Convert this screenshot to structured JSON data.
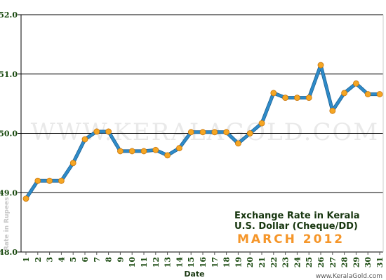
{
  "watermark": "WWW.KERALAGOLD.COM",
  "credit": "www.KeralaGold.com",
  "chart_data": {
    "type": "line",
    "title_lines": [
      "Exchange Rate in Kerala",
      "U.S. Dollar (Cheque/DD)"
    ],
    "subtitle": "MARCH 2012",
    "xlabel": "Date",
    "ylabel": "Rate in Rupees",
    "ylim": [
      48.0,
      52.0
    ],
    "yticks": [
      "48.0",
      "49.0",
      "50.0",
      "51.0",
      "52.0"
    ],
    "x": [
      1,
      2,
      3,
      4,
      5,
      6,
      7,
      8,
      9,
      10,
      11,
      12,
      13,
      14,
      15,
      16,
      17,
      18,
      19,
      20,
      21,
      22,
      23,
      24,
      25,
      26,
      27,
      28,
      29,
      30,
      31
    ],
    "series": [
      {
        "values": [
          48.9,
          49.2,
          49.2,
          49.2,
          49.5,
          49.9,
          50.03,
          50.03,
          49.7,
          49.7,
          49.7,
          49.72,
          49.63,
          49.75,
          50.02,
          50.02,
          50.02,
          50.02,
          49.83,
          50.0,
          50.17,
          50.68,
          50.6,
          50.6,
          50.6,
          51.15,
          50.38,
          50.68,
          50.84,
          50.66,
          50.66
        ]
      }
    ],
    "grid": true,
    "line_color": "#2e8bc9",
    "marker_color": "#f5a623",
    "gridline_color": "#000000"
  }
}
